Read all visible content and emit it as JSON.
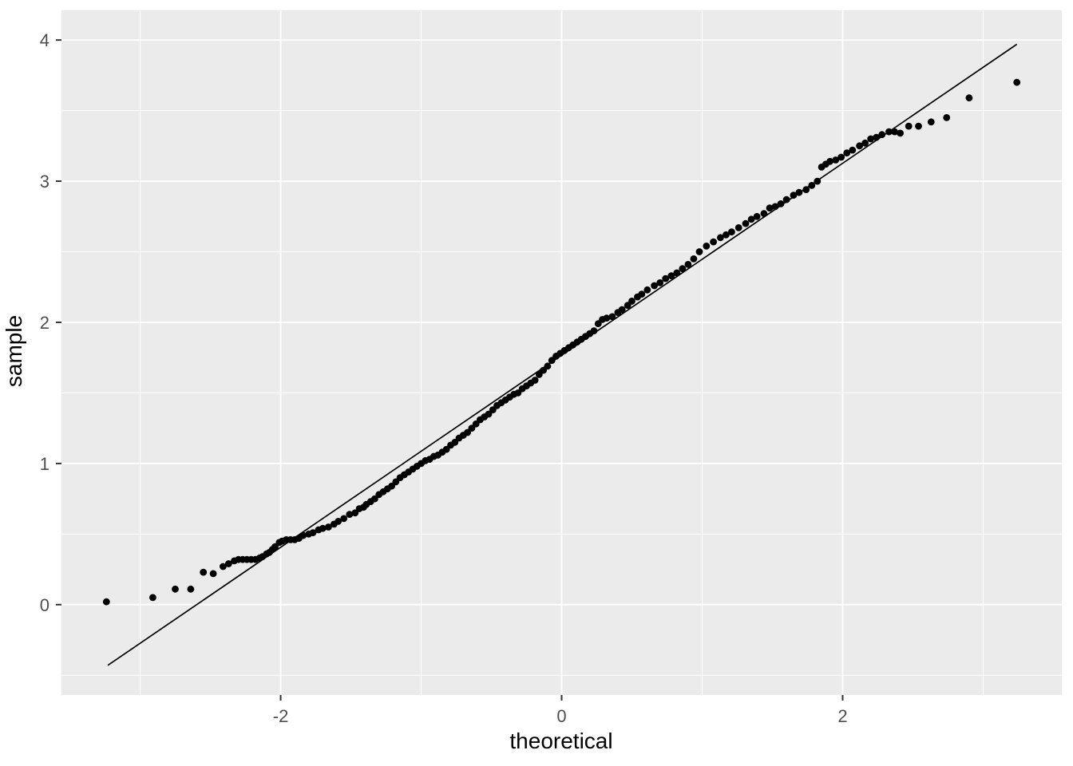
{
  "chart_data": {
    "type": "scatter",
    "subtype": "qq-plot",
    "title": "",
    "xlabel": "theoretical",
    "ylabel": "sample",
    "xlim": [
      -3.56,
      3.56
    ],
    "ylim": [
      -0.64,
      4.21
    ],
    "grid": "on",
    "legend": "none",
    "x_ticks": [
      {
        "value": -2,
        "label": "-2"
      },
      {
        "value": 0,
        "label": "0"
      },
      {
        "value": 2,
        "label": "2"
      }
    ],
    "y_ticks": [
      {
        "value": 0,
        "label": "0"
      },
      {
        "value": 1,
        "label": "1"
      },
      {
        "value": 2,
        "label": "2"
      },
      {
        "value": 3,
        "label": "3"
      },
      {
        "value": 4,
        "label": "4"
      }
    ],
    "x_minor": [
      -3,
      -1,
      1,
      3
    ],
    "y_minor": [
      -0.5,
      0.5,
      1.5,
      2.5,
      3.5
    ],
    "reference_line": {
      "x1": -3.23,
      "y1": -0.43,
      "x2": 3.24,
      "y2": 3.97,
      "slope": 0.68,
      "intercept": 1.77
    },
    "colors": {
      "page_background": "#FFFFFF",
      "panel_background": "#EBEBEB",
      "grid": "#FFFFFF",
      "point": "#000000",
      "line": "#000000",
      "tick_label": "#4D4D4D",
      "tick_mark": "#333333",
      "axis_title": "#000000"
    },
    "points": [
      [
        -3.24,
        0.02
      ],
      [
        -2.91,
        0.05
      ],
      [
        -2.75,
        0.11
      ],
      [
        -2.64,
        0.11
      ],
      [
        -2.55,
        0.23
      ],
      [
        -2.48,
        0.22
      ],
      [
        -2.41,
        0.27
      ],
      [
        -2.37,
        0.29
      ],
      [
        -2.33,
        0.31
      ],
      [
        -2.3,
        0.32
      ],
      [
        -2.27,
        0.32
      ],
      [
        -2.24,
        0.32
      ],
      [
        -2.21,
        0.32
      ],
      [
        -2.18,
        0.32
      ],
      [
        -2.15,
        0.33
      ],
      [
        -2.13,
        0.34
      ],
      [
        -2.1,
        0.36
      ],
      [
        -2.08,
        0.37
      ],
      [
        -2.06,
        0.39
      ],
      [
        -2.04,
        0.41
      ],
      [
        -2.01,
        0.44
      ],
      [
        -1.99,
        0.45
      ],
      [
        -1.96,
        0.46
      ],
      [
        -1.93,
        0.46
      ],
      [
        -1.9,
        0.46
      ],
      [
        -1.87,
        0.47
      ],
      [
        -1.84,
        0.49
      ],
      [
        -1.8,
        0.5
      ],
      [
        -1.77,
        0.51
      ],
      [
        -1.73,
        0.53
      ],
      [
        -1.7,
        0.54
      ],
      [
        -1.66,
        0.55
      ],
      [
        -1.62,
        0.57
      ],
      [
        -1.59,
        0.59
      ],
      [
        -1.55,
        0.61
      ],
      [
        -1.51,
        0.64
      ],
      [
        -1.47,
        0.65
      ],
      [
        -1.44,
        0.68
      ],
      [
        -1.41,
        0.69
      ],
      [
        -1.39,
        0.71
      ],
      [
        -1.36,
        0.73
      ],
      [
        -1.33,
        0.75
      ],
      [
        -1.3,
        0.78
      ],
      [
        -1.27,
        0.8
      ],
      [
        -1.24,
        0.82
      ],
      [
        -1.21,
        0.84
      ],
      [
        -1.18,
        0.87
      ],
      [
        -1.15,
        0.9
      ],
      [
        -1.12,
        0.92
      ],
      [
        -1.09,
        0.94
      ],
      [
        -1.06,
        0.96
      ],
      [
        -1.03,
        0.98
      ],
      [
        -1.0,
        1.0
      ],
      [
        -0.97,
        1.02
      ],
      [
        -0.94,
        1.03
      ],
      [
        -0.91,
        1.05
      ],
      [
        -0.88,
        1.06
      ],
      [
        -0.85,
        1.08
      ],
      [
        -0.82,
        1.1
      ],
      [
        -0.79,
        1.13
      ],
      [
        -0.76,
        1.15
      ],
      [
        -0.73,
        1.18
      ],
      [
        -0.7,
        1.2
      ],
      [
        -0.67,
        1.22
      ],
      [
        -0.64,
        1.25
      ],
      [
        -0.61,
        1.28
      ],
      [
        -0.58,
        1.31
      ],
      [
        -0.55,
        1.33
      ],
      [
        -0.52,
        1.35
      ],
      [
        -0.49,
        1.38
      ],
      [
        -0.46,
        1.41
      ],
      [
        -0.43,
        1.43
      ],
      [
        -0.4,
        1.45
      ],
      [
        -0.37,
        1.47
      ],
      [
        -0.34,
        1.49
      ],
      [
        -0.31,
        1.5
      ],
      [
        -0.28,
        1.53
      ],
      [
        -0.25,
        1.55
      ],
      [
        -0.22,
        1.57
      ],
      [
        -0.19,
        1.59
      ],
      [
        -0.16,
        1.63
      ],
      [
        -0.13,
        1.66
      ],
      [
        -0.1,
        1.69
      ],
      [
        -0.07,
        1.73
      ],
      [
        -0.04,
        1.76
      ],
      [
        -0.01,
        1.78
      ],
      [
        0.02,
        1.8
      ],
      [
        0.05,
        1.82
      ],
      [
        0.08,
        1.84
      ],
      [
        0.11,
        1.86
      ],
      [
        0.14,
        1.88
      ],
      [
        0.17,
        1.9
      ],
      [
        0.2,
        1.92
      ],
      [
        0.23,
        1.94
      ],
      [
        0.26,
        1.99
      ],
      [
        0.29,
        2.02
      ],
      [
        0.32,
        2.03
      ],
      [
        0.36,
        2.04
      ],
      [
        0.4,
        2.07
      ],
      [
        0.43,
        2.09
      ],
      [
        0.47,
        2.12
      ],
      [
        0.5,
        2.15
      ],
      [
        0.54,
        2.18
      ],
      [
        0.57,
        2.2
      ],
      [
        0.61,
        2.23
      ],
      [
        0.66,
        2.26
      ],
      [
        0.7,
        2.28
      ],
      [
        0.74,
        2.31
      ],
      [
        0.78,
        2.33
      ],
      [
        0.82,
        2.35
      ],
      [
        0.86,
        2.38
      ],
      [
        0.9,
        2.41
      ],
      [
        0.94,
        2.45
      ],
      [
        0.98,
        2.5
      ],
      [
        1.03,
        2.54
      ],
      [
        1.08,
        2.57
      ],
      [
        1.13,
        2.6
      ],
      [
        1.17,
        2.62
      ],
      [
        1.21,
        2.64
      ],
      [
        1.26,
        2.67
      ],
      [
        1.31,
        2.7
      ],
      [
        1.35,
        2.73
      ],
      [
        1.39,
        2.75
      ],
      [
        1.44,
        2.77
      ],
      [
        1.48,
        2.81
      ],
      [
        1.52,
        2.82
      ],
      [
        1.56,
        2.84
      ],
      [
        1.6,
        2.87
      ],
      [
        1.65,
        2.9
      ],
      [
        1.69,
        2.92
      ],
      [
        1.74,
        2.94
      ],
      [
        1.78,
        2.97
      ],
      [
        1.82,
        3.0
      ],
      [
        1.85,
        3.1
      ],
      [
        1.88,
        3.12
      ],
      [
        1.91,
        3.14
      ],
      [
        1.95,
        3.15
      ],
      [
        1.99,
        3.17
      ],
      [
        2.03,
        3.2
      ],
      [
        2.07,
        3.22
      ],
      [
        2.12,
        3.25
      ],
      [
        2.16,
        3.27
      ],
      [
        2.2,
        3.3
      ],
      [
        2.24,
        3.31
      ],
      [
        2.28,
        3.33
      ],
      [
        2.33,
        3.35
      ],
      [
        2.37,
        3.35
      ],
      [
        2.41,
        3.34
      ],
      [
        2.47,
        3.39
      ],
      [
        2.54,
        3.39
      ],
      [
        2.63,
        3.42
      ],
      [
        2.74,
        3.45
      ],
      [
        2.9,
        3.59
      ],
      [
        3.24,
        3.7
      ]
    ]
  }
}
